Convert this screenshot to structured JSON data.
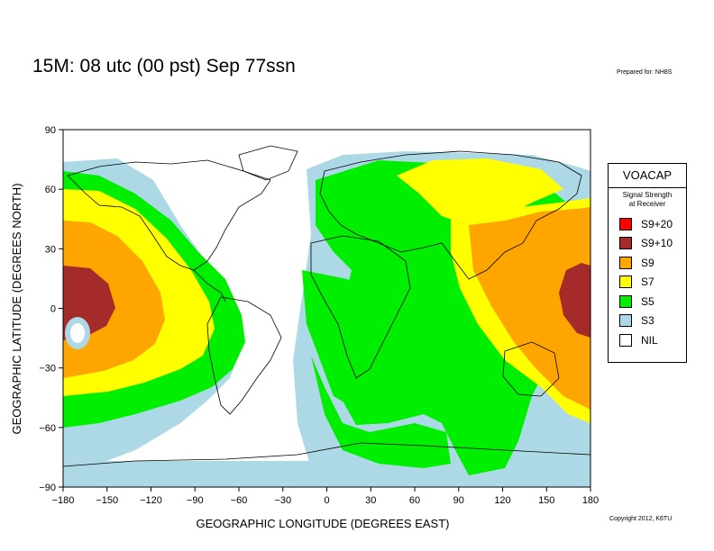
{
  "title": "15M:  08 utc (00 pst) Sep 77ssn",
  "prepared_for": "Prepared for: NH8S",
  "copyright": "Copyright 2012, K6TU",
  "x_axis": {
    "label": "GEOGRAPHIC LONGITUDE (DEGREES EAST)",
    "ticks": [
      -180,
      -150,
      -120,
      -90,
      -60,
      -30,
      0,
      30,
      60,
      90,
      120,
      150,
      180
    ],
    "range": [
      -180,
      180
    ]
  },
  "y_axis": {
    "label": "GEOGRAPHIC LATITUDE (DEGREES NORTH)",
    "ticks": [
      90,
      60,
      30,
      0,
      -30,
      -60,
      -90
    ],
    "range": [
      -90,
      90
    ]
  },
  "legend": {
    "title": "VOACAP",
    "subtitle_line1": "Signal Strength",
    "subtitle_line2": "at Receiver",
    "items": [
      {
        "label": "S9+20",
        "color": "#ff0000"
      },
      {
        "label": "S9+10",
        "color": "#a52a2a"
      },
      {
        "label": "S9",
        "color": "#ffa500"
      },
      {
        "label": "S7",
        "color": "#ffff00"
      },
      {
        "label": "S5",
        "color": "#00ee00"
      },
      {
        "label": "S3",
        "color": "#add8e6"
      },
      {
        "label": "NIL",
        "color": "#ffffff"
      }
    ]
  }
}
